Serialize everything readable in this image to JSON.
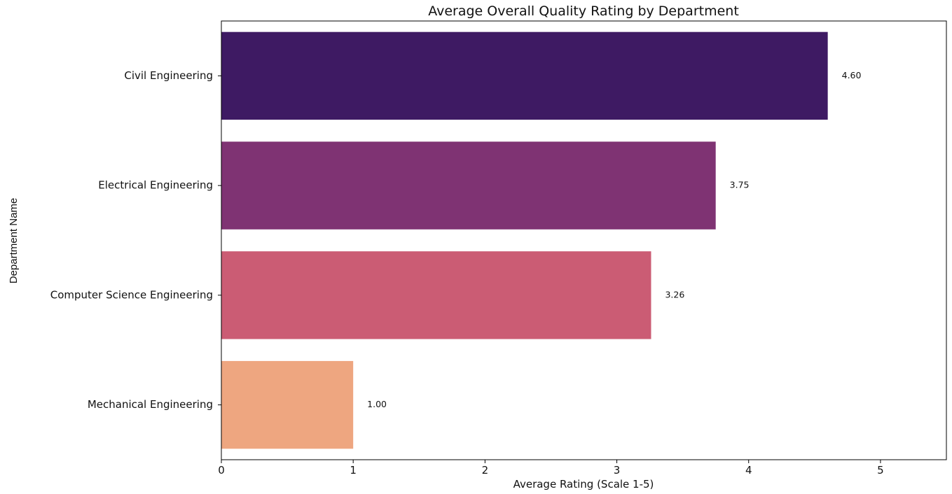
{
  "chart_data": {
    "type": "bar",
    "orientation": "horizontal",
    "title": "Average Overall Quality Rating by Department",
    "xlabel": "Average Rating (Scale 1-5)",
    "ylabel": "Department Name",
    "categories": [
      "Civil Engineering",
      "Electrical Engineering",
      "Computer Science Engineering",
      "Mechanical Engineering"
    ],
    "values": [
      4.6,
      3.75,
      3.26,
      1.0
    ],
    "value_labels": [
      "4.60",
      "3.75",
      "3.26",
      "1.00"
    ],
    "colors": [
      "#3e1a63",
      "#7f3373",
      "#cb5c74",
      "#eea680"
    ],
    "xlim": [
      0,
      5.5
    ],
    "xticks": [
      0,
      1,
      2,
      3,
      4,
      5
    ],
    "xtick_labels": [
      "0",
      "1",
      "2",
      "3",
      "4",
      "5"
    ],
    "grid": false,
    "legend": "none"
  }
}
